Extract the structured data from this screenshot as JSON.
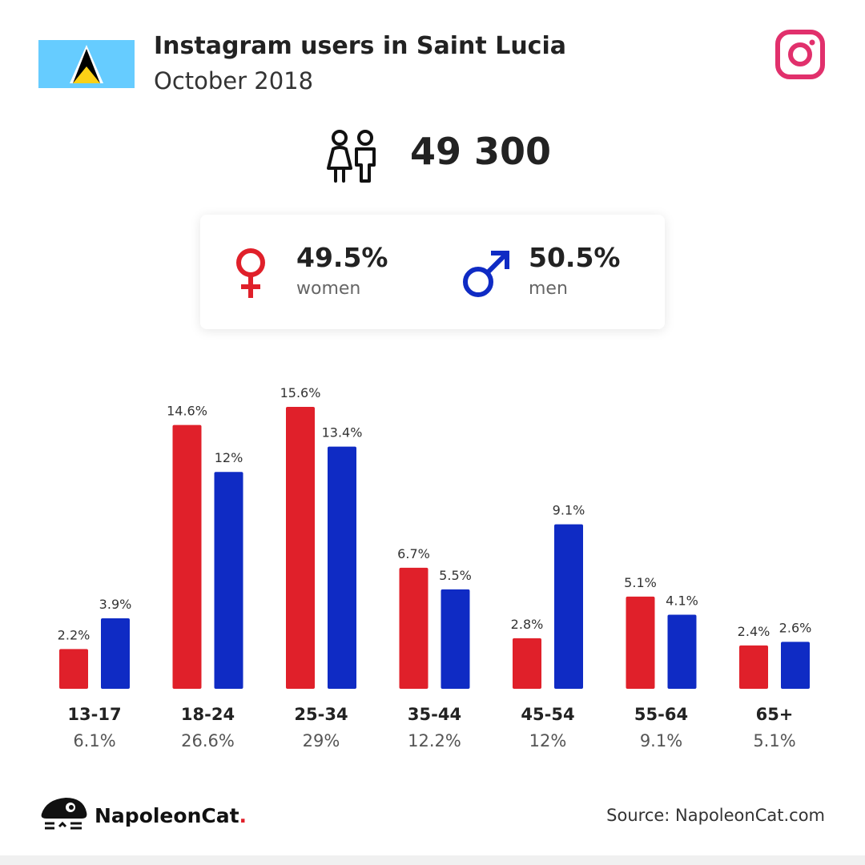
{
  "header": {
    "title": "Instagram users in Saint Lucia",
    "subtitle": "October 2018"
  },
  "icons": {
    "flag": "saint-lucia-flag-icon",
    "logo": "instagram-icon",
    "people": "people-icon",
    "female": "female-symbol-icon",
    "male": "male-symbol-icon",
    "brand": "napoleoncat-mascot-icon"
  },
  "summary": {
    "total": "49 300",
    "women_pct": "49.5%",
    "women_label": "women",
    "men_pct": "50.5%",
    "men_label": "men"
  },
  "colors": {
    "women": "#e0202a",
    "men": "#0f2bc4",
    "instagram": "#e1306c",
    "flag_blue": "#66ccff",
    "flag_gold": "#fcd116"
  },
  "chart_data": {
    "type": "bar",
    "categories": [
      "13-17",
      "18-24",
      "25-34",
      "35-44",
      "45-54",
      "55-64",
      "65+"
    ],
    "category_totals": [
      "6.1%",
      "26.6%",
      "29%",
      "12.2%",
      "12%",
      "9.1%",
      "5.1%"
    ],
    "series": [
      {
        "values": [
          2.2,
          14.6,
          15.6,
          6.7,
          2.8,
          5.1,
          2.4
        ],
        "labels": [
          "2.2%",
          "14.6%",
          "15.6%",
          "6.7%",
          "2.8%",
          "5.1%",
          "2.4%"
        ]
      },
      {
        "values": [
          3.9,
          12,
          13.4,
          5.5,
          9.1,
          4.1,
          2.6
        ],
        "labels": [
          "3.9%",
          "12%",
          "13.4%",
          "5.5%",
          "9.1%",
          "4.1%",
          "2.6%"
        ]
      }
    ],
    "ylim": [
      0,
      15.6
    ],
    "grid": false
  },
  "footer": {
    "brand_name": "NapoleonCat",
    "brand_dot": ".",
    "source": "Source: NapoleonCat.com"
  }
}
